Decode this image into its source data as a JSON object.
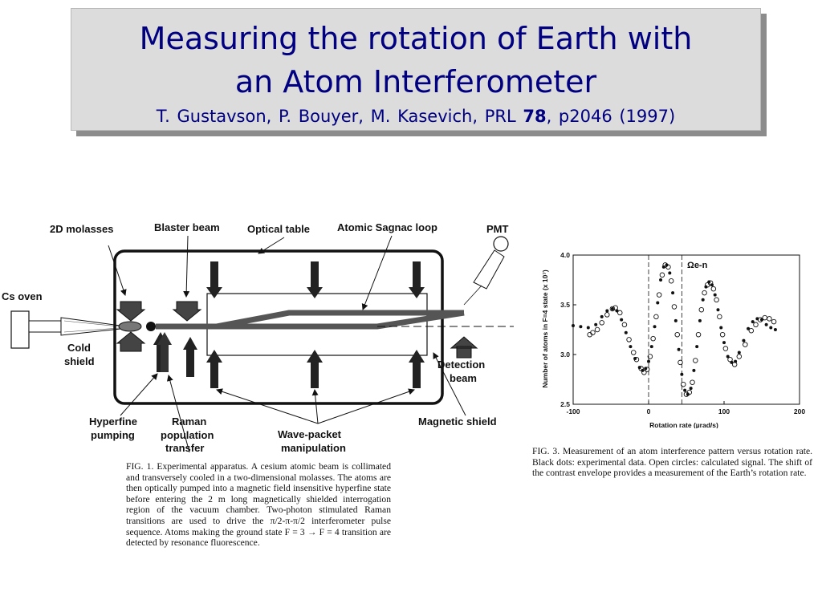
{
  "slide": {
    "title_line1": "Measuring the rotation of Earth with",
    "title_line2": "an Atom Interferometer",
    "citation_authors": "T. Gustavson,  P. Bouyer,  M. Kasevich,  PRL ",
    "citation_volume": "78",
    "citation_rest": ", p2046  (1997)"
  },
  "figure1": {
    "labels": {
      "molasses": "2D  molasses",
      "blaster": "Blaster beam",
      "optical_table": "Optical  table",
      "sagnac": "Atomic Sagnac loop",
      "pmt": "PMT",
      "cs_oven": "Cs  oven",
      "cold_shield_1": "Cold",
      "cold_shield_2": "shield",
      "detection_1": "Detection",
      "detection_2": "beam",
      "hyperfine_1": "Hyperfine",
      "hyperfine_2": "pumping",
      "raman_1": "Raman",
      "raman_2": "population",
      "raman_3": "transfer",
      "wavepacket_1": "Wave-packet",
      "wavepacket_2": "manipulation",
      "magnetic": "Magnetic  shield"
    },
    "caption": "FIG. 1.   Experimental apparatus.  A cesium atomic beam is collimated and transversely cooled in a two-dimensional molasses.  The atoms are then optically pumped into a magnetic field insensitive hyperfine state before entering the 2 m long magnetically shielded interrogation region of the vacuum chamber.  Two-photon stimulated Raman transitions are used to drive the π/2-π-π/2 interferometer pulse sequence.  Atoms making the ground state F = 3 → F = 4 transition are detected by resonance fluorescence."
  },
  "figure3": {
    "caption": "FIG. 3.   Measurement of an atom interference pattern versus rotation rate.  Black dots: experimental data.  Open circles: calculated signal.  The shift of the contrast envelope provides a measurement of the Earth’s rotation rate.",
    "annotation": "Ωe-n"
  },
  "chart_data": {
    "type": "scatter",
    "xlabel": "Rotation rate (µrad/s)",
    "ylabel": "Number of atoms in F=4 state (x 10⁷)",
    "xlim": [
      -100,
      200
    ],
    "ylim": [
      2.5,
      4.0
    ],
    "xticks": [
      -100,
      0,
      100,
      200
    ],
    "yticks": [
      2.5,
      3.0,
      3.5,
      4.0
    ],
    "xtick_labels": [
      "-100",
      "0",
      "100",
      "200"
    ],
    "ytick_labels": [
      "2.5",
      "3.0",
      "3.5",
      "4.0"
    ],
    "reference_lines_x": [
      0,
      44
    ],
    "annotation": "Ωe-n",
    "series": [
      {
        "name": "Black dots: experimental data",
        "marker": "dot",
        "color": "#111111",
        "x": [
          -100,
          -90,
          -80,
          -70,
          -62,
          -55,
          -48,
          -42,
          -36,
          -30,
          -24,
          -18,
          -12,
          -8,
          -4,
          0,
          4,
          8,
          12,
          16,
          20,
          24,
          28,
          32,
          36,
          40,
          44,
          48,
          52,
          56,
          60,
          64,
          68,
          72,
          76,
          80,
          84,
          88,
          92,
          96,
          100,
          105,
          110,
          115,
          120,
          126,
          132,
          138,
          144,
          150,
          156,
          162,
          168
        ],
        "y": [
          3.29,
          3.28,
          3.27,
          3.3,
          3.38,
          3.44,
          3.46,
          3.44,
          3.35,
          3.22,
          3.08,
          2.96,
          2.87,
          2.84,
          2.86,
          2.93,
          3.08,
          3.28,
          3.52,
          3.75,
          3.88,
          3.9,
          3.82,
          3.62,
          3.34,
          3.05,
          2.8,
          2.64,
          2.6,
          2.66,
          2.84,
          3.08,
          3.34,
          3.55,
          3.68,
          3.73,
          3.7,
          3.6,
          3.45,
          3.27,
          3.12,
          2.98,
          2.92,
          2.93,
          3.02,
          3.14,
          3.26,
          3.33,
          3.36,
          3.35,
          3.3,
          3.27,
          3.25
        ]
      },
      {
        "name": "Open circles: calculated signal",
        "marker": "open-circle",
        "color": "#111111",
        "x": [
          -78,
          -74,
          -68,
          -62,
          -55,
          -48,
          -44,
          -38,
          -32,
          -26,
          -20,
          -16,
          -10,
          -6,
          -2,
          2,
          6,
          10,
          14,
          18,
          22,
          26,
          30,
          34,
          38,
          42,
          46,
          50,
          54,
          58,
          62,
          66,
          70,
          74,
          78,
          82,
          86,
          90,
          94,
          98,
          102,
          108,
          114,
          120,
          128,
          136,
          142,
          148,
          154,
          160,
          166
        ],
        "y": [
          3.2,
          3.22,
          3.25,
          3.32,
          3.4,
          3.46,
          3.47,
          3.42,
          3.3,
          3.15,
          3.02,
          2.95,
          2.86,
          2.82,
          2.85,
          2.98,
          3.16,
          3.38,
          3.6,
          3.8,
          3.9,
          3.88,
          3.74,
          3.48,
          3.2,
          2.92,
          2.7,
          2.6,
          2.62,
          2.72,
          2.94,
          3.2,
          3.45,
          3.62,
          3.7,
          3.72,
          3.66,
          3.55,
          3.38,
          3.2,
          3.06,
          2.95,
          2.9,
          2.98,
          3.1,
          3.24,
          3.3,
          3.35,
          3.37,
          3.36,
          3.33
        ]
      }
    ]
  }
}
